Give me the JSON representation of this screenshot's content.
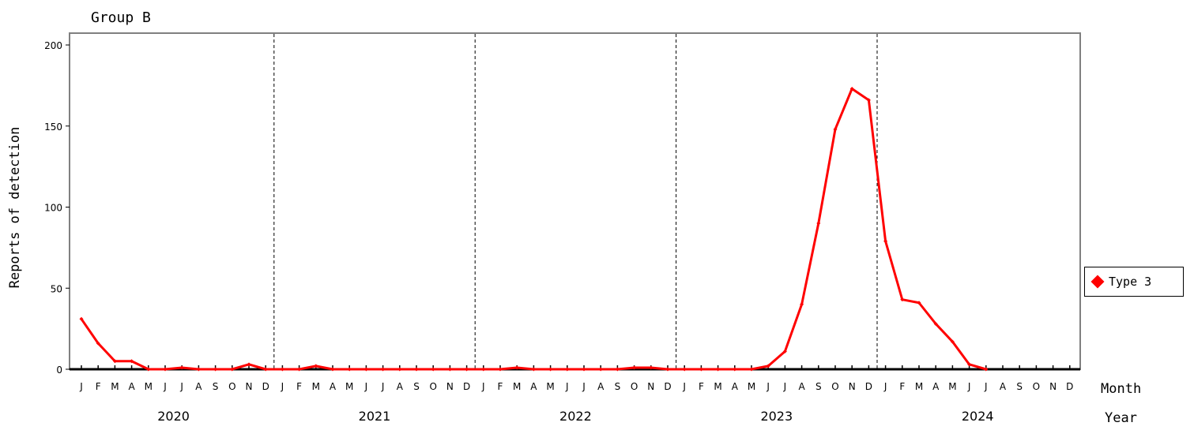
{
  "chart_data": {
    "type": "line",
    "title": "Group B",
    "ylabel": "Reports of detection",
    "xlabel_month": "Month",
    "xlabel_year": "Year",
    "ylim": [
      0,
      200
    ],
    "yticks": [
      0,
      50,
      100,
      150,
      200
    ],
    "months": [
      "J",
      "F",
      "M",
      "A",
      "M",
      "J",
      "J",
      "A",
      "S",
      "O",
      "N",
      "D"
    ],
    "years": [
      "2020",
      "2021",
      "2022",
      "2023",
      "2024"
    ],
    "legend": {
      "position": "right",
      "label": "Type 3"
    },
    "series": [
      {
        "name": "Type 3",
        "color": "#ff0000",
        "marker": "diamond",
        "values": [
          31,
          16,
          5,
          5,
          0,
          0,
          1,
          0,
          0,
          0,
          3,
          0,
          0,
          0,
          2,
          0,
          0,
          0,
          0,
          0,
          0,
          0,
          0,
          0,
          0,
          0,
          1,
          0,
          0,
          0,
          0,
          0,
          0,
          1,
          1,
          0,
          0,
          0,
          0,
          0,
          0,
          2,
          11,
          40,
          90,
          148,
          173,
          166,
          79,
          43,
          41,
          28,
          17,
          3,
          0
        ]
      }
    ]
  }
}
